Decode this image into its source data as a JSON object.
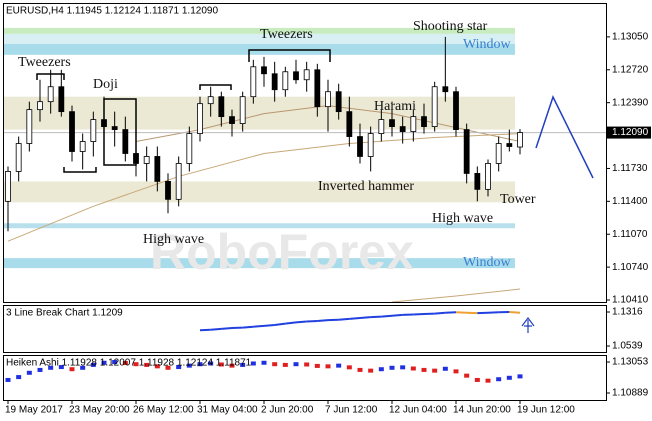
{
  "chart_data": [
    {
      "type": "candlestick",
      "title": "EURUSD,H4  1.11945 1.12124 1.11871 1.12090",
      "watermark": "RoboForex",
      "categories": [
        "19 May 2017",
        null,
        null,
        null,
        null,
        null,
        "23 May 20:00",
        null,
        null,
        null,
        null,
        null,
        "26 May 12:00",
        null,
        null,
        null,
        null,
        null,
        "31 May 04:00",
        null,
        null,
        null,
        null,
        null,
        "2 Jun 20:00",
        null,
        null,
        null,
        null,
        null,
        "7 Jun 12:00",
        null,
        null,
        null,
        null,
        null,
        "12 Jun 04:00",
        null,
        null,
        null,
        null,
        null,
        "14 Jun 20:00",
        null,
        null,
        null,
        null,
        null,
        "19 Jun 12:00"
      ],
      "open": [
        1.114,
        1.117,
        1.1198,
        1.1232,
        1.124,
        1.1255,
        1.123,
        1.119,
        1.12,
        1.1222,
        1.1215,
        1.1212,
        1.1188,
        1.1178,
        1.1185,
        1.116,
        1.1142,
        1.1178,
        1.1208,
        1.1238,
        1.1245,
        1.1225,
        1.1218,
        1.1245,
        1.1275,
        1.1268,
        1.1252,
        1.127,
        1.1262,
        1.1272,
        1.1235,
        1.125,
        1.123,
        1.1205,
        1.1185,
        1.1208,
        1.1222,
        1.1215,
        1.121,
        1.1225,
        1.1215,
        1.1255,
        1.125,
        1.1212,
        1.1168,
        1.1152,
        1.1178,
        1.1198,
        1.11945
      ],
      "high": [
        1.1175,
        1.1205,
        1.124,
        1.1262,
        1.1272,
        1.1272,
        1.1236,
        1.1208,
        1.123,
        1.1245,
        1.123,
        1.1225,
        1.12,
        1.1195,
        1.1195,
        1.1168,
        1.1185,
        1.1215,
        1.1245,
        1.1255,
        1.125,
        1.1232,
        1.125,
        1.1282,
        1.1285,
        1.128,
        1.1275,
        1.1282,
        1.128,
        1.1278,
        1.1262,
        1.1258,
        1.1245,
        1.1218,
        1.1215,
        1.1232,
        1.124,
        1.1225,
        1.1232,
        1.1238,
        1.126,
        1.1305,
        1.1255,
        1.1218,
        1.1175,
        1.1182,
        1.1205,
        1.1212,
        1.12124
      ],
      "low": [
        1.111,
        1.116,
        1.119,
        1.122,
        1.1228,
        1.1225,
        1.118,
        1.1172,
        1.1185,
        1.1205,
        1.1195,
        1.118,
        1.1165,
        1.116,
        1.115,
        1.1128,
        1.1135,
        1.117,
        1.12,
        1.1225,
        1.1215,
        1.1205,
        1.121,
        1.1238,
        1.1255,
        1.124,
        1.1245,
        1.1258,
        1.125,
        1.1225,
        1.121,
        1.1222,
        1.1195,
        1.1178,
        1.117,
        1.12,
        1.1205,
        1.1198,
        1.12,
        1.1208,
        1.121,
        1.124,
        1.1205,
        1.1158,
        1.114,
        1.1145,
        1.117,
        1.119,
        1.11871
      ],
      "close": [
        1.117,
        1.1198,
        1.1232,
        1.124,
        1.1255,
        1.123,
        1.119,
        1.12,
        1.1222,
        1.1215,
        1.1212,
        1.1188,
        1.1178,
        1.1185,
        1.116,
        1.1142,
        1.1178,
        1.1208,
        1.1238,
        1.1245,
        1.1225,
        1.1218,
        1.1245,
        1.1275,
        1.1268,
        1.1252,
        1.127,
        1.1262,
        1.1272,
        1.1235,
        1.125,
        1.123,
        1.1205,
        1.1185,
        1.1208,
        1.1222,
        1.1215,
        1.121,
        1.1225,
        1.1215,
        1.1255,
        1.125,
        1.1212,
        1.1168,
        1.1152,
        1.1178,
        1.1198,
        1.1195,
        1.1209
      ],
      "ylim": [
        1.1039,
        1.1339
      ],
      "yticks": [
        {
          "value": 1.1305,
          "label": "1.13050"
        },
        {
          "value": 1.1272,
          "label": "1.12720"
        },
        {
          "value": 1.1239,
          "label": "1.12390"
        },
        {
          "value": 1.1173,
          "label": "1.11730"
        },
        {
          "value": 1.114,
          "label": "1.11400"
        },
        {
          "value": 1.1107,
          "label": "1.11070"
        },
        {
          "value": 1.1074,
          "label": "1.10740"
        },
        {
          "value": 1.1041,
          "label": "1.10410"
        }
      ],
      "current_price": {
        "value": 1.1209,
        "label": "1.12090"
      },
      "zones": [
        {
          "from": 1.1314,
          "to": 1.1308,
          "color": "#c8ecc0"
        },
        {
          "from": 1.1308,
          "to": 1.1298,
          "color": "#d8f0f4"
        },
        {
          "from": 1.1298,
          "to": 1.1287,
          "color": "#a8dcea"
        },
        {
          "from": 1.1245,
          "to": 1.1212,
          "color": "#ebe8d4"
        },
        {
          "from": 1.116,
          "to": 1.1139,
          "color": "#ebe8d4"
        },
        {
          "from": 1.1118,
          "to": 1.1113,
          "color": "#b8e0ec"
        },
        {
          "from": 1.1083,
          "to": 1.1073,
          "color": "#a8dcea"
        }
      ],
      "moving_averages": [
        {
          "color": "#c8a878",
          "x": [
            0,
            8,
            16,
            24,
            32,
            40,
            48
          ],
          "values": [
            1.11,
            1.1135,
            1.1165,
            1.1188,
            1.1198,
            1.1204,
            1.1208
          ]
        },
        {
          "color": "#b89870",
          "x": [
            12,
            18,
            24,
            30,
            36,
            42,
            48
          ],
          "values": [
            1.12,
            1.1212,
            1.1228,
            1.1236,
            1.1228,
            1.1214,
            1.12
          ]
        },
        {
          "color": "#c8a878",
          "x": [
            36,
            42,
            48
          ],
          "values": [
            1.1039,
            1.1045,
            1.1052
          ]
        }
      ],
      "annotations": [
        "Tweezers",
        "Doji",
        "Tweezers",
        "Shooting star",
        "Window",
        "Harami",
        "Inverted hammer",
        "Tower",
        "High wave",
        "High wave",
        "Window"
      ]
    },
    {
      "type": "line",
      "title": "3 Line Break Chart 1.1209",
      "up_color": "#2040e0",
      "down_color": "#f0a030",
      "x": [
        18,
        19,
        20,
        21,
        22,
        23,
        24,
        25,
        26,
        27,
        28,
        29,
        30,
        31,
        32,
        33,
        34,
        35,
        36,
        37,
        38,
        39,
        40,
        41,
        42,
        43,
        44,
        45,
        46,
        47,
        48
      ],
      "values": [
        1.09,
        1.091,
        1.093,
        1.095,
        1.096,
        1.098,
        1.1,
        1.102,
        1.105,
        1.108,
        1.11,
        1.111,
        1.113,
        1.114,
        1.116,
        1.118,
        1.12,
        1.121,
        1.123,
        1.125,
        1.126,
        1.127,
        1.128,
        1.13,
        1.131,
        1.13,
        1.129,
        1.13,
        1.131,
        1.1316,
        1.13
      ],
      "ylim": [
        1.0402,
        1.1476
      ],
      "yticks": [
        1.1316,
        1.0539
      ]
    },
    {
      "type": "dots",
      "title": "Heiken Ashi 1.11928 1.12007 1.11928 1.12124 1.11871",
      "up_color": "#2030e0",
      "down_color": "#e02020",
      "values": [
        1.118,
        1.12,
        1.123,
        1.125,
        1.1265,
        1.127,
        1.1255,
        1.1265,
        1.1285,
        1.13,
        1.1305,
        1.1298,
        1.129,
        1.1285,
        1.1275,
        1.1265,
        1.127,
        1.128,
        1.129,
        1.1295,
        1.1288,
        1.128,
        1.1285,
        1.1295,
        1.13,
        1.129,
        1.1285,
        1.129,
        1.1288,
        1.1278,
        1.1275,
        1.128,
        1.1268,
        1.125,
        1.1245,
        1.1255,
        1.1265,
        1.1268,
        1.126,
        1.125,
        1.1245,
        1.1258,
        1.124,
        1.121,
        1.118,
        1.1175,
        1.1185,
        1.1195,
        1.1205
      ],
      "ylim": [
        1.104,
        1.13542
      ],
      "yticks": [
        1.13053,
        1.10889
      ]
    }
  ]
}
